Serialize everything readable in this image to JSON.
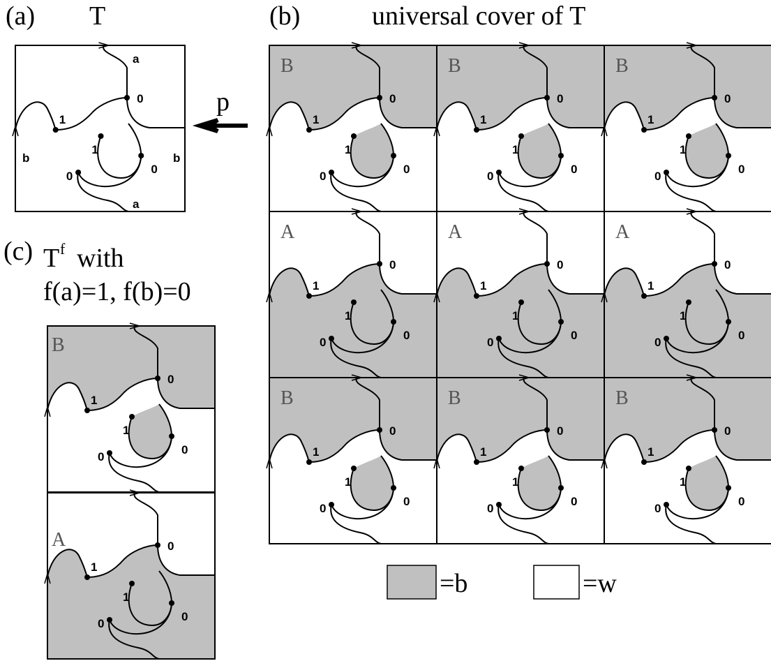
{
  "panel_a": {
    "label": "(a)",
    "title": "T",
    "edge_labels": [
      "a",
      "b",
      "b",
      "a"
    ],
    "node_labels": [
      "0",
      "1",
      "1",
      "0",
      "0"
    ]
  },
  "arrow_label": "p",
  "panel_b": {
    "label": "(b)",
    "title": "universal cover of T",
    "rows": [
      [
        "B",
        "B",
        "B"
      ],
      [
        "A",
        "A",
        "A"
      ],
      [
        "B",
        "B",
        "B"
      ]
    ],
    "node_labels": [
      "0",
      "1",
      "1",
      "0",
      "0"
    ]
  },
  "panel_c": {
    "label": "(c)",
    "title": "T",
    "superscript": "f",
    "title_rest": "with",
    "subtitle": "f(a)=1, f(b)=0",
    "region_labels": [
      "B",
      "A"
    ],
    "node_labels": [
      "0",
      "1",
      "1",
      "0",
      "0",
      "0",
      "1",
      "1",
      "0",
      "0"
    ]
  },
  "legend": [
    {
      "label": "=b"
    },
    {
      "label": "=w"
    }
  ]
}
